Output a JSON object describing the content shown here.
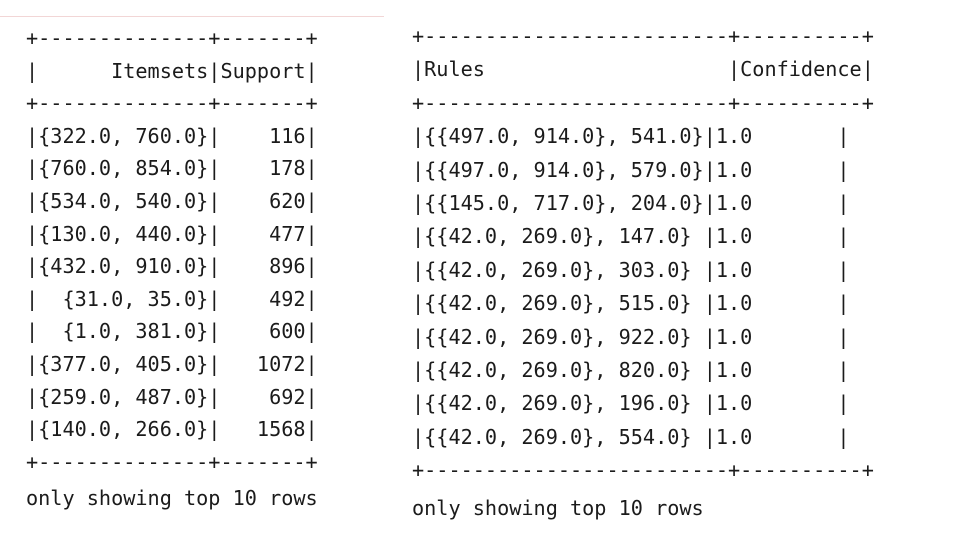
{
  "itemsets_table": {
    "border_top": "+--------------+-------+",
    "header_row": "|      Itemsets|Support|",
    "border_header": "+--------------+-------+",
    "rows": [
      "|{322.0, 760.0}|    116|",
      "|{760.0, 854.0}|    178|",
      "|{534.0, 540.0}|    620|",
      "|{130.0, 440.0}|    477|",
      "|{432.0, 910.0}|    896|",
      "|  {31.0, 35.0}|    492|",
      "|  {1.0, 381.0}|    600|",
      "|{377.0, 405.0}|   1072|",
      "|{259.0, 487.0}|    692|",
      "|{140.0, 266.0}|   1568|"
    ],
    "border_bottom": "+--------------+-------+",
    "footer": "only showing top 10 rows"
  },
  "rules_table": {
    "border_top": "+-------------------------+----------+",
    "header_row": "|Rules                    |Confidence|",
    "border_header": "+-------------------------+----------+",
    "rows": [
      "|{{497.0, 914.0}, 541.0}|1.0       |",
      "|{{497.0, 914.0}, 579.0}|1.0       |",
      "|{{145.0, 717.0}, 204.0}|1.0       |",
      "|{{42.0, 269.0}, 147.0} |1.0       |",
      "|{{42.0, 269.0}, 303.0} |1.0       |",
      "|{{42.0, 269.0}, 515.0} |1.0       |",
      "|{{42.0, 269.0}, 922.0} |1.0       |",
      "|{{42.0, 269.0}, 820.0} |1.0       |",
      "|{{42.0, 269.0}, 196.0} |1.0       |",
      "|{{42.0, 269.0}, 554.0} |1.0       |"
    ],
    "border_bottom": "+-------------------------+----------+",
    "footer": "only showing top 10 rows"
  }
}
